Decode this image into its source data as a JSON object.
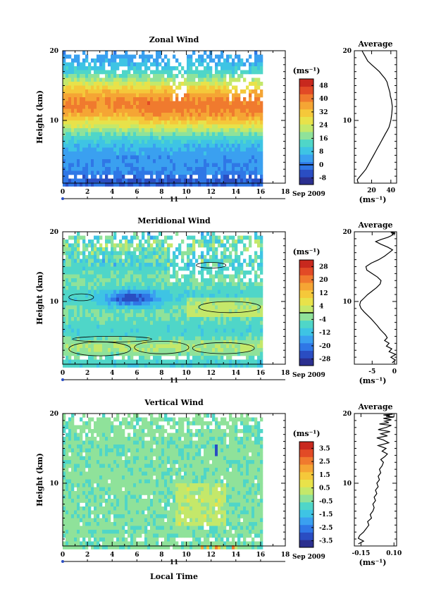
{
  "chart_data": [
    {
      "type": "heatmap",
      "title": "Zonal Wind",
      "ylabel": "Height (km)",
      "xticks": [
        "0",
        "2",
        "4",
        "6",
        "8",
        "10",
        "12",
        "14",
        "16",
        "18"
      ],
      "xlim": [
        0,
        18
      ],
      "data_until_hour": 16,
      "yticks": [
        "10",
        "20"
      ],
      "ylim": [
        1,
        20
      ],
      "date_day": "11",
      "date_month": "Sep 2009",
      "colorbar": {
        "unit": "(ms⁻¹)",
        "labels": [
          "48",
          "40",
          "32",
          "24",
          "16",
          "8",
          "0",
          "-8"
        ],
        "min": -12,
        "max": 52,
        "colors": [
          "#2b2f8f",
          "#2a4dc2",
          "#2f77e6",
          "#3aa0f0",
          "#3ec4e4",
          "#4fd6c8",
          "#8fe29a",
          "#c4e86a",
          "#e8e24a",
          "#f5c83a",
          "#f5a534",
          "#f07a2e",
          "#e24a26",
          "#c8281e"
        ],
        "contour_value": 0
      },
      "field": {
        "pattern": "zonal",
        "peak_height_km": 12.5,
        "peak_speed": 38
      }
    },
    {
      "type": "line",
      "title": "Average",
      "xlabel": "(ms⁻¹)",
      "xticks": [
        "20",
        "40"
      ],
      "xlim": [
        2,
        46
      ],
      "yticks": [
        "10",
        "20"
      ],
      "ylim": [
        1,
        20
      ],
      "series": [
        {
          "x": [
            6,
            5,
            8,
            11,
            14,
            16,
            18,
            20,
            22,
            24,
            26,
            28,
            30,
            32,
            34,
            36,
            38,
            39,
            40,
            40.5,
            41,
            41.5,
            41,
            40.5,
            39.5,
            39,
            38,
            37,
            36,
            34,
            31,
            28,
            24,
            20,
            16,
            14,
            12,
            10
          ],
          "y": [
            1,
            1.5,
            2,
            2.5,
            3,
            3.5,
            4,
            4.5,
            5,
            5.5,
            6,
            6.5,
            7,
            7.5,
            8,
            8.5,
            9,
            9.5,
            10,
            10.5,
            11,
            12,
            12.5,
            13,
            13.5,
            14,
            14.5,
            15,
            15.5,
            16,
            16.5,
            17,
            17.5,
            18,
            18.5,
            19,
            19.5,
            20
          ]
        }
      ]
    },
    {
      "type": "heatmap",
      "title": "Meridional Wind",
      "ylabel": "Height (km)",
      "xticks": [
        "0",
        "2",
        "4",
        "6",
        "8",
        "10",
        "12",
        "14",
        "16",
        "18"
      ],
      "xlim": [
        0,
        18
      ],
      "data_until_hour": 16,
      "yticks": [
        "10",
        "20"
      ],
      "ylim": [
        1,
        20
      ],
      "date_day": "11",
      "date_month": "Sep 2009",
      "colorbar": {
        "unit": "(ms⁻¹)",
        "labels": [
          "28",
          "20",
          "12",
          "4",
          "-4",
          "-12",
          "-20",
          "-28"
        ],
        "min": -32,
        "max": 32,
        "colors": [
          "#2b2f8f",
          "#2a4dc2",
          "#2f77e6",
          "#3aa0f0",
          "#3ec4e4",
          "#4fd6c8",
          "#8fe29a",
          "#c4e86a",
          "#e8e24a",
          "#f5c83a",
          "#f5a534",
          "#f07a2e",
          "#e24a26",
          "#c8281e"
        ],
        "contour_value": 0
      },
      "field": {
        "pattern": "meridional",
        "min_height_km": 10.5,
        "min_speed": -24
      }
    },
    {
      "type": "line",
      "title": "Average",
      "xlabel": "(ms⁻¹)",
      "xticks": [
        "-5",
        "0"
      ],
      "xlim": [
        -9,
        0.5
      ],
      "yticks": [
        "10",
        "20"
      ],
      "ylim": [
        1,
        20
      ],
      "series": [
        {
          "x": [
            -0.5,
            0.2,
            -0.8,
            0.3,
            -1.2,
            -0.6,
            -1.8,
            -1.2,
            -2.2,
            -1.6,
            -2.0,
            -2.6,
            -3.2,
            -3.8,
            -4.5,
            -5.2,
            -6.0,
            -6.8,
            -7.5,
            -7.8,
            -7.6,
            -6.8,
            -6.0,
            -5.0,
            -4.0,
            -3.2,
            -3.0,
            -3.8,
            -5.0,
            -6.2,
            -6.4,
            -5.2,
            -3.5,
            -2.2,
            -1.2,
            -0.4,
            -1.5,
            -3.0,
            -4.2,
            -3.0,
            -1.5,
            -0.8,
            -0.3,
            -0.5,
            0.2,
            -0.8,
            -0.2
          ],
          "y": [
            1.2,
            1.6,
            2.0,
            2.4,
            2.8,
            3.2,
            3.6,
            4.0,
            4.4,
            4.8,
            5.2,
            5.6,
            6.0,
            6.5,
            7.0,
            7.5,
            8.0,
            8.5,
            9.0,
            9.5,
            10.0,
            10.5,
            11.0,
            11.5,
            12.0,
            12.5,
            13.0,
            13.5,
            14.0,
            14.5,
            15.0,
            15.5,
            16.0,
            16.5,
            17.0,
            17.4,
            17.8,
            18.2,
            18.6,
            18.9,
            19.2,
            19.4,
            19.6,
            19.7,
            19.8,
            19.9,
            20.0
          ]
        }
      ]
    },
    {
      "type": "heatmap",
      "title": "Vertical Wind",
      "ylabel": "Height (km)",
      "xlabel": "Local Time",
      "xticks": [
        "0",
        "2",
        "4",
        "6",
        "8",
        "10",
        "12",
        "14",
        "16",
        "18"
      ],
      "xlim": [
        0,
        18
      ],
      "data_until_hour": 16,
      "yticks": [
        "10",
        "20"
      ],
      "ylim": [
        1,
        20
      ],
      "date_day": "11",
      "date_month": "Sep 2009",
      "colorbar": {
        "unit": "(ms⁻¹)",
        "labels": [
          "3.5",
          "2.5",
          "1.5",
          "0.5",
          "-0.5",
          "-1.5",
          "-2.5",
          "-3.5"
        ],
        "min": -4.0,
        "max": 4.0,
        "colors": [
          "#2b2f8f",
          "#2a4dc2",
          "#2f77e6",
          "#3aa0f0",
          "#3ec4e4",
          "#4fd6c8",
          "#8fe29a",
          "#c4e86a",
          "#e8e24a",
          "#f5c83a",
          "#f5a534",
          "#f07a2e",
          "#e24a26",
          "#c8281e"
        ]
      },
      "field": {
        "pattern": "vertical",
        "mean_speed": -0.3
      }
    },
    {
      "type": "line",
      "title": "Average",
      "xlabel": "(ms⁻¹)",
      "xticks": [
        "-0.15",
        "0.10"
      ],
      "xlim": [
        -0.2,
        0.12
      ],
      "yticks": [
        "10",
        "20"
      ],
      "ylim": [
        1,
        20
      ],
      "series": [
        {
          "x": [
            -0.17,
            -0.13,
            -0.17,
            -0.16,
            -0.13,
            -0.11,
            -0.09,
            -0.1,
            -0.07,
            -0.08,
            -0.06,
            -0.05,
            -0.06,
            -0.04,
            -0.05,
            -0.03,
            -0.04,
            -0.02,
            -0.03,
            -0.01,
            -0.02,
            0.0,
            -0.01,
            0.01,
            0.02,
            0.0,
            0.03,
            0.05,
            0.01,
            0.04,
            -0.02,
            0.06,
            0.02,
            -0.03,
            0.05,
            0.0,
            0.07,
            -0.02,
            0.04,
            0.08,
            -0.01,
            0.06,
            0.03,
            0.08,
            0.02,
            0.06,
            0.1,
            0.04,
            0.07,
            0.02,
            0.09
          ],
          "y": [
            1.3,
            1.7,
            2.1,
            2.5,
            3.0,
            3.5,
            4.0,
            4.5,
            5.0,
            5.5,
            6.0,
            6.5,
            7.0,
            7.5,
            8.0,
            8.5,
            9.0,
            9.5,
            10.0,
            10.5,
            11.0,
            11.5,
            12.0,
            12.5,
            13.0,
            13.4,
            13.8,
            14.2,
            14.6,
            15.0,
            15.4,
            15.8,
            16.2,
            16.5,
            16.8,
            17.1,
            17.4,
            17.7,
            18.0,
            18.3,
            18.5,
            18.7,
            18.9,
            19.1,
            19.3,
            19.4,
            19.5,
            19.6,
            19.7,
            19.8,
            19.9
          ]
        }
      ]
    }
  ]
}
